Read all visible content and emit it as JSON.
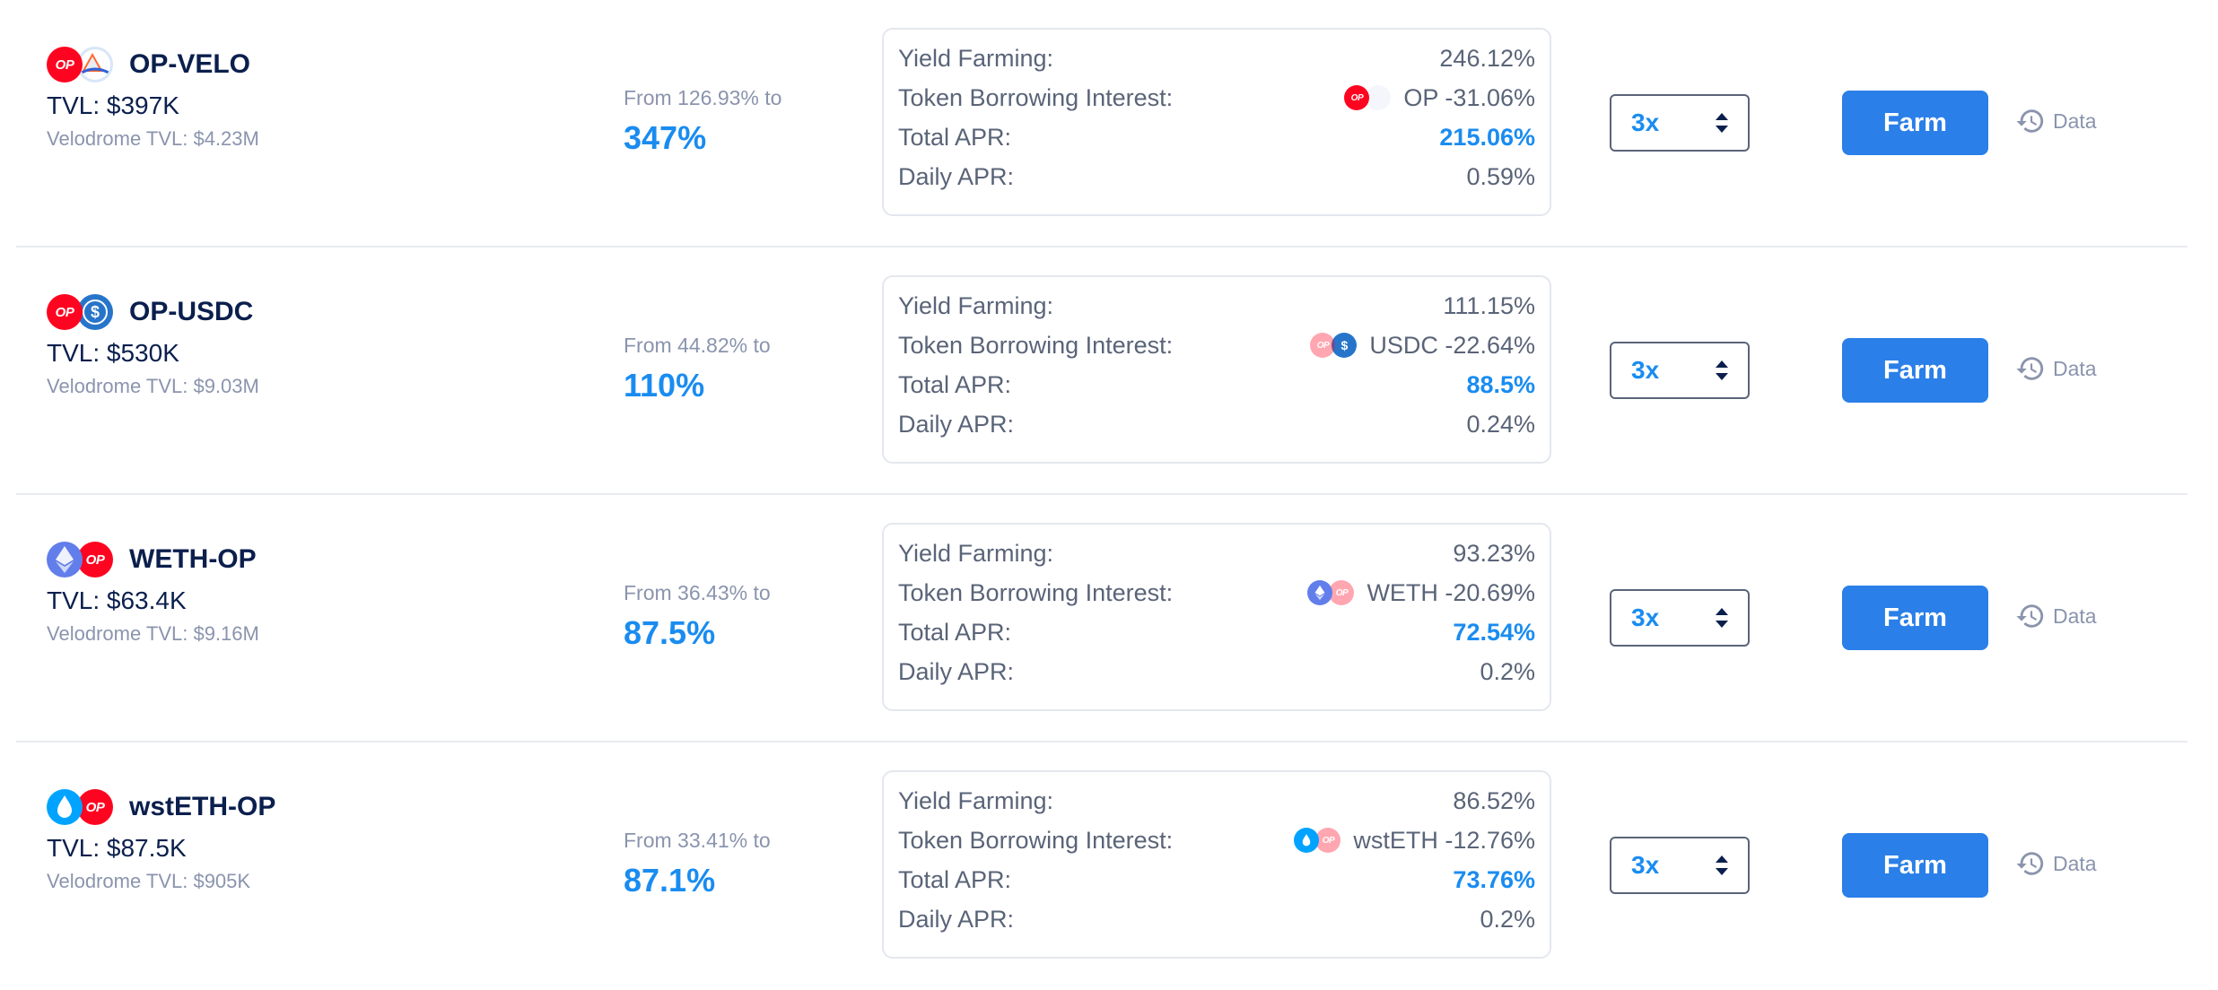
{
  "labels": {
    "yield_farming": "Yield Farming:",
    "token_borrowing_interest": "Token Borrowing Interest:",
    "total_apr": "Total APR:",
    "daily_apr": "Daily APR:",
    "farm_button": "Farm",
    "data_link": "Data",
    "op_badge": "OP",
    "usdc_glyph": "$"
  },
  "colors": {
    "accent": "#1a8cf0",
    "button": "#2a7fe8",
    "muted": "#8a94ad",
    "title": "#0b1f4d",
    "op_red": "#ff0420"
  },
  "rows": [
    {
      "pair": "OP-VELO",
      "icons": [
        "op-token-icon",
        "velo-token-icon"
      ],
      "tvl": "TVL: $397K",
      "velodrome_tvl": "Velodrome TVL: $4.23M",
      "range_from": "From 126.93% to",
      "range_max": "347%",
      "yield_farming": "246.12%",
      "borrow_token": "OP",
      "borrow_interest": "OP -31.06%",
      "total_apr": "215.06%",
      "daily_apr": "0.59%",
      "leverage": "3x"
    },
    {
      "pair": "OP-USDC",
      "icons": [
        "op-token-icon",
        "usdc-token-icon"
      ],
      "tvl": "TVL: $530K",
      "velodrome_tvl": "Velodrome TVL: $9.03M",
      "range_from": "From 44.82% to",
      "range_max": "110%",
      "yield_farming": "111.15%",
      "borrow_token": "USDC",
      "borrow_interest": "USDC -22.64%",
      "total_apr": "88.5%",
      "daily_apr": "0.24%",
      "leverage": "3x"
    },
    {
      "pair": "WETH-OP",
      "icons": [
        "weth-token-icon",
        "op-token-icon"
      ],
      "tvl": "TVL: $63.4K",
      "velodrome_tvl": "Velodrome TVL: $9.16M",
      "range_from": "From 36.43% to",
      "range_max": "87.5%",
      "yield_farming": "93.23%",
      "borrow_token": "WETH",
      "borrow_interest": "WETH -20.69%",
      "total_apr": "72.54%",
      "daily_apr": "0.2%",
      "leverage": "3x"
    },
    {
      "pair": "wstETH-OP",
      "icons": [
        "wsteth-token-icon",
        "op-token-icon"
      ],
      "tvl": "TVL: $87.5K",
      "velodrome_tvl": "Velodrome TVL: $905K",
      "range_from": "From 33.41% to",
      "range_max": "87.1%",
      "yield_farming": "86.52%",
      "borrow_token": "wstETH",
      "borrow_interest": "wstETH -12.76%",
      "total_apr": "73.76%",
      "daily_apr": "0.2%",
      "leverage": "3x"
    }
  ]
}
